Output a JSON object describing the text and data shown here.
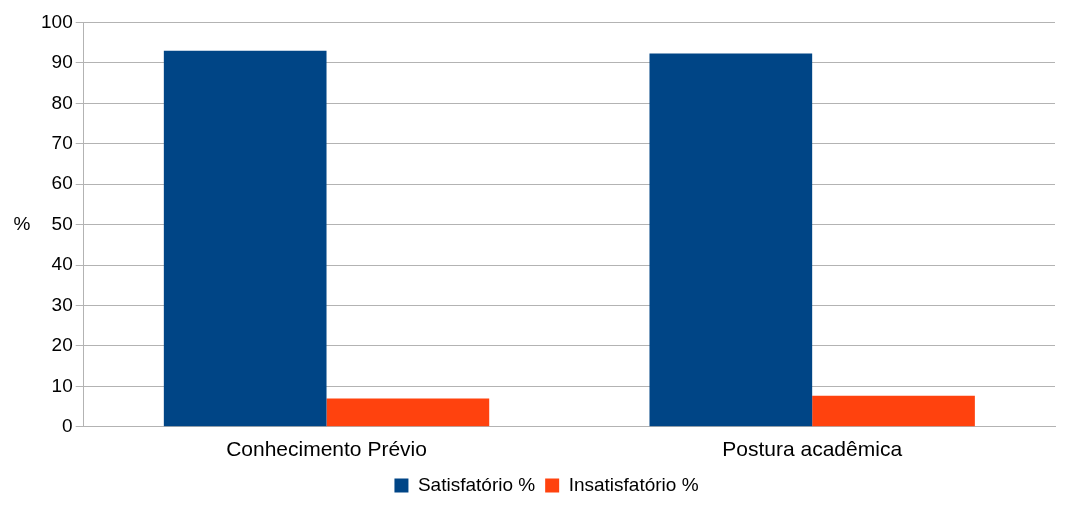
{
  "chart_data": {
    "type": "bar",
    "ylabel": "%",
    "categories": [
      "Conhecimento Prévio",
      "Postura acadêmica"
    ],
    "series": [
      {
        "name": "Satisfatório %",
        "color": "#004586",
        "values": [
          93,
          92.3
        ]
      },
      {
        "name": "Insatisfatório %",
        "color": "#ff420e",
        "values": [
          7,
          7.7
        ]
      }
    ],
    "ylim": [
      0,
      100
    ],
    "yticks": [
      0,
      10,
      20,
      30,
      40,
      50,
      60,
      70,
      80,
      90,
      100
    ],
    "grid": "y",
    "legend": "bottom"
  }
}
